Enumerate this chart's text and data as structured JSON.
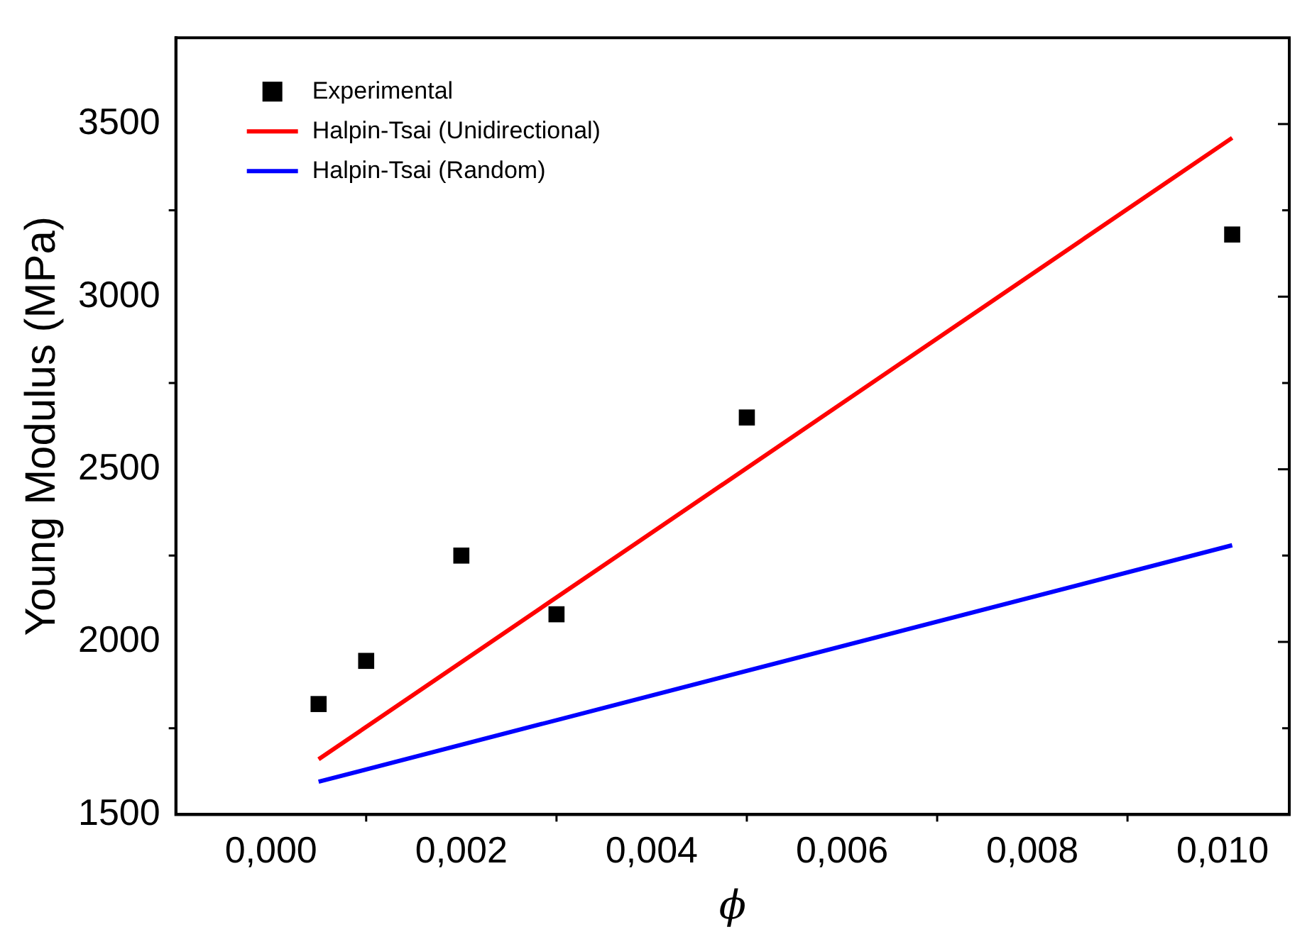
{
  "chart_data": {
    "type": "scatter",
    "xlabel": "ϕ",
    "ylabel": "Young Modulus (MPa)",
    "xlim": [
      -0.001,
      0.0107
    ],
    "ylim": [
      1500,
      3750
    ],
    "xticks": [
      {
        "value": 0,
        "label": "0,000"
      },
      {
        "value": 0.002,
        "label": "0,002"
      },
      {
        "value": 0.004,
        "label": "0,004"
      },
      {
        "value": 0.006,
        "label": "0,006"
      },
      {
        "value": 0.008,
        "label": "0,008"
      },
      {
        "value": 0.01,
        "label": "0,010"
      }
    ],
    "yticks": [
      1500,
      2000,
      2500,
      3000,
      3500
    ],
    "grid": false,
    "legend": "top left",
    "marker": "square",
    "series": [
      {
        "name": "Experimental",
        "type": "scatter",
        "color": "#000000",
        "x": [
          0.0005,
          0.001,
          0.002,
          0.003,
          0.005,
          0.0101
        ],
        "values": [
          1820,
          1945,
          2250,
          2080,
          2650,
          3180
        ]
      },
      {
        "name": "Halpin-Tsai (Unidirectional)",
        "type": "line",
        "color": "#ff0000",
        "marker": "none",
        "x": [
          0.0005,
          0.0101
        ],
        "values": [
          1660,
          3460
        ]
      },
      {
        "name": "Halpin-Tsai (Random)",
        "type": "line",
        "color": "#0000ff",
        "marker": "none",
        "x": [
          0.0005,
          0.0101
        ],
        "values": [
          1595,
          2280
        ]
      }
    ]
  }
}
